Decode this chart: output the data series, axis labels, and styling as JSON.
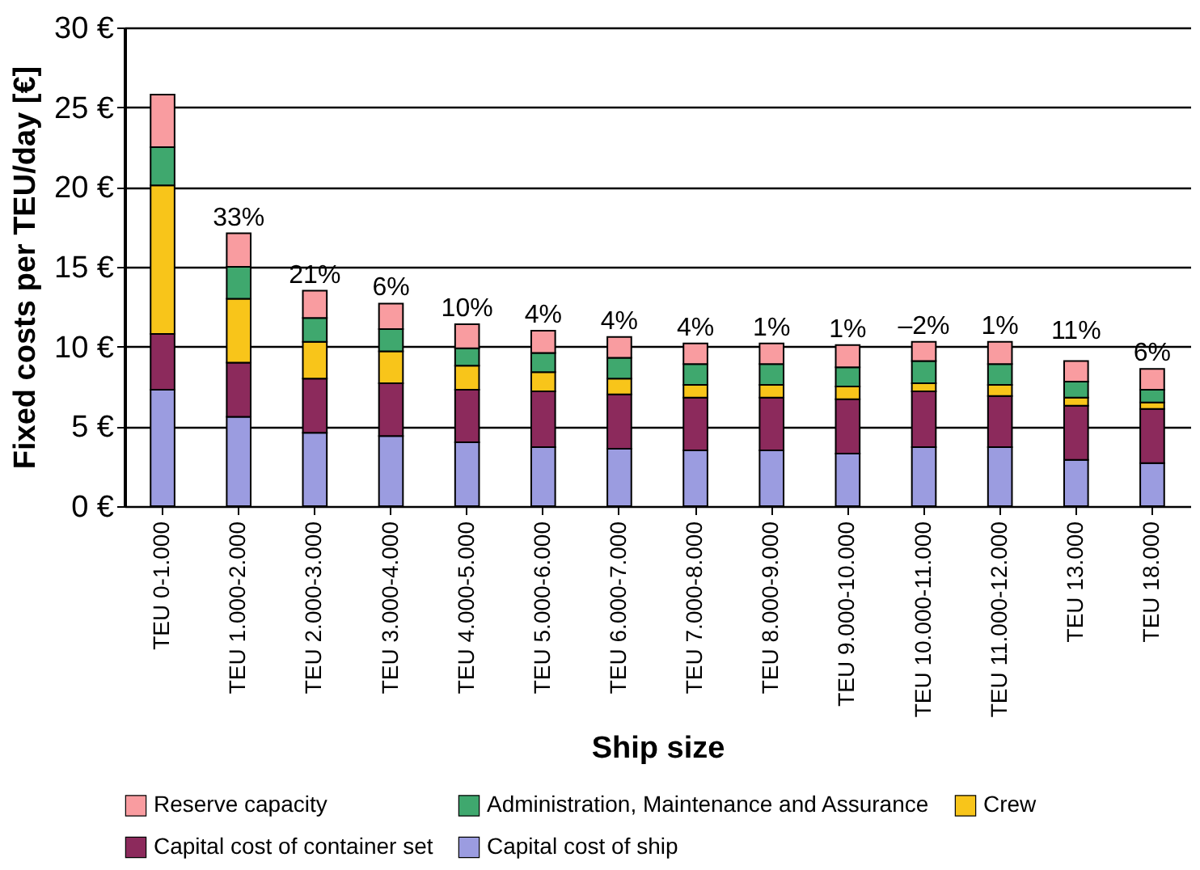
{
  "chart_data": {
    "type": "bar",
    "stacked": true,
    "xlabel": "Ship size",
    "ylabel": "Fixed costs per TEU/day [€]",
    "categories": [
      "TEU 0-1.000",
      "TEU 1.000-2.000",
      "TEU 2.000-3.000",
      "TEU 3.000-4.000",
      "TEU 4.000-5.000",
      "TEU 5.000-6.000",
      "TEU 6.000-7.000",
      "TEU 7.000-8.000",
      "TEU 8.000-9.000",
      "TEU 9.000-10.000",
      "TEU 10.000-11.000",
      "TEU 11.000-12.000",
      "TEU 13.000",
      "TEU 18.000"
    ],
    "series": [
      {
        "name": "Capital cost of ship",
        "color": "#9b9ce0",
        "values": [
          7.3,
          5.6,
          4.6,
          4.4,
          4.0,
          3.7,
          3.6,
          3.5,
          3.5,
          3.3,
          3.7,
          3.7,
          2.9,
          2.7
        ]
      },
      {
        "name": "Capital cost of container set",
        "color": "#8c2a5c",
        "values": [
          3.5,
          3.4,
          3.4,
          3.3,
          3.3,
          3.5,
          3.4,
          3.3,
          3.3,
          3.4,
          3.5,
          3.2,
          3.4,
          3.4
        ]
      },
      {
        "name": "Crew",
        "color": "#f8c51a",
        "values": [
          9.3,
          4.0,
          2.3,
          2.0,
          1.5,
          1.2,
          1.0,
          0.8,
          0.8,
          0.8,
          0.5,
          0.7,
          0.5,
          0.4
        ]
      },
      {
        "name": "Administration, Maintenance and Assurance",
        "color": "#3fa86e",
        "values": [
          2.4,
          2.0,
          1.5,
          1.4,
          1.1,
          1.2,
          1.3,
          1.3,
          1.3,
          1.2,
          1.4,
          1.3,
          1.0,
          0.8
        ]
      },
      {
        "name": "Reserve capacity",
        "color": "#f99ca0",
        "values": [
          3.3,
          2.1,
          1.7,
          1.6,
          1.5,
          1.4,
          1.3,
          1.3,
          1.3,
          1.4,
          1.2,
          1.4,
          1.3,
          1.3
        ]
      }
    ],
    "ylim": [
      0,
      30
    ],
    "yticks": [
      {
        "value": 0,
        "label": "0 €"
      },
      {
        "value": 5,
        "label": "5 €"
      },
      {
        "value": 10,
        "label": "10 €"
      },
      {
        "value": 15,
        "label": "15 €"
      },
      {
        "value": 20,
        "label": "20 €"
      },
      {
        "value": 25,
        "label": "25 €"
      },
      {
        "value": 30,
        "label": "30 €"
      }
    ],
    "grid": "y",
    "legend": "bottom",
    "annotations": [
      {
        "text": "33%",
        "x": "TEU 1.000-2.000",
        "y": 17.1
      },
      {
        "text": "21%",
        "x": "TEU 2.000-3.000",
        "y": 13.5
      },
      {
        "text": "6%",
        "x": "TEU 3.000-4.000",
        "y": 12.7
      },
      {
        "text": "10%",
        "x": "TEU 4.000-5.000",
        "y": 11.4
      },
      {
        "text": "4%",
        "x": "TEU 5.000-6.000",
        "y": 11.0
      },
      {
        "text": "4%",
        "x": "TEU 6.000-7.000",
        "y": 10.6
      },
      {
        "text": "4%",
        "x": "TEU 7.000-8.000",
        "y": 10.2
      },
      {
        "text": "1%",
        "x": "TEU 8.000-9.000",
        "y": 10.2
      },
      {
        "text": "1%",
        "x": "TEU 9.000-10.000",
        "y": 10.1
      },
      {
        "text": "–2%",
        "x": "TEU 10.000-11.000",
        "y": 10.3
      },
      {
        "text": "1%",
        "x": "TEU 11.000-12.000",
        "y": 10.3
      },
      {
        "text": "11%",
        "x": "TEU 13.000",
        "y": 9.1
      },
      {
        "text": "6%",
        "x": "TEU 18.000",
        "y": 8.6
      }
    ]
  }
}
